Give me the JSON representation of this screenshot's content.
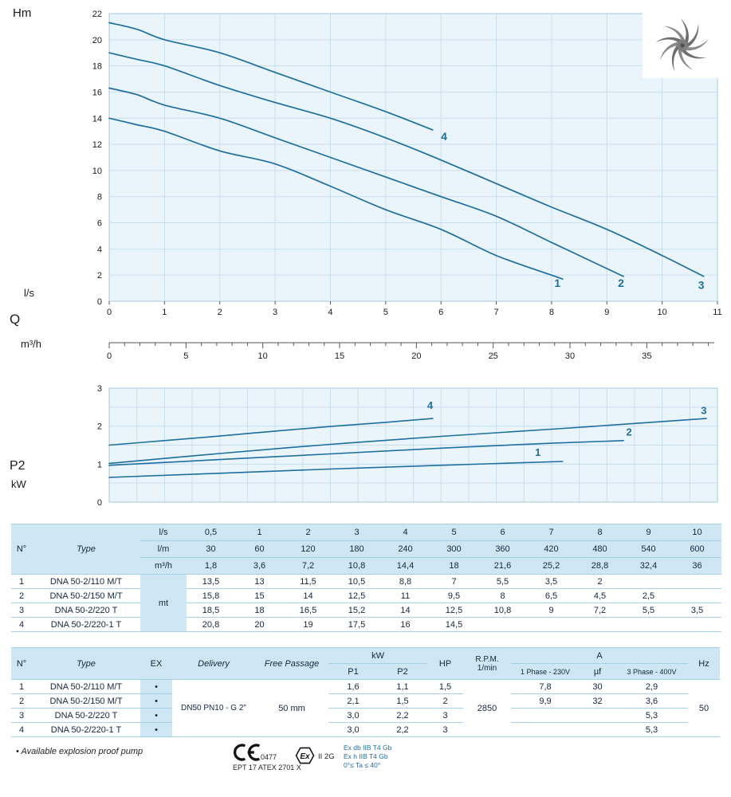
{
  "page": {
    "accent": "#1e6f9f",
    "chart_bg": "#eaf4fb",
    "grid_color": "#c9dfee",
    "axis_color": "#a5c9de",
    "table_header_bg": "#cfe7f5"
  },
  "axis_labels": {
    "hm": "Hm",
    "ls": "l/s",
    "q": "Q",
    "m3h": "m³/h",
    "p2": "P2",
    "kw": "kW"
  },
  "chart_data": [
    {
      "type": "line",
      "title": "",
      "ylabel": "Hm",
      "xlabel": "Q (l/s)",
      "x2label": "Q (m³/h)",
      "xlim": [
        0,
        11
      ],
      "ylim": [
        0,
        22
      ],
      "grid": true,
      "legend_position": "none",
      "y_ticks": [
        0,
        2,
        4,
        6,
        8,
        10,
        12,
        14,
        16,
        18,
        20,
        22
      ],
      "x_ticks": [
        0,
        1,
        2,
        3,
        4,
        5,
        6,
        7,
        8,
        9,
        10,
        11
      ],
      "x2_ticks": [
        0,
        5,
        10,
        15,
        20,
        25,
        30,
        35
      ],
      "series": [
        {
          "name": "1",
          "points": [
            [
              0,
              14
            ],
            [
              0.5,
              13.5
            ],
            [
              1,
              13
            ],
            [
              2,
              11.5
            ],
            [
              3,
              10.5
            ],
            [
              4,
              8.8
            ],
            [
              5,
              7
            ],
            [
              6,
              5.5
            ],
            [
              7,
              3.5
            ],
            [
              8,
              2
            ],
            [
              8.2,
              1.7
            ]
          ],
          "label_pos": [
            8.05,
            1.1
          ]
        },
        {
          "name": "2",
          "points": [
            [
              0,
              16.3
            ],
            [
              0.5,
              15.8
            ],
            [
              1,
              15
            ],
            [
              2,
              14
            ],
            [
              3,
              12.5
            ],
            [
              4,
              11
            ],
            [
              5,
              9.5
            ],
            [
              6,
              8
            ],
            [
              7,
              6.5
            ],
            [
              8,
              4.5
            ],
            [
              9,
              2.5
            ],
            [
              9.3,
              1.9
            ]
          ],
          "label_pos": [
            9.2,
            1.1
          ]
        },
        {
          "name": "3",
          "points": [
            [
              0,
              19
            ],
            [
              0.5,
              18.5
            ],
            [
              1,
              18
            ],
            [
              2,
              16.5
            ],
            [
              3,
              15.2
            ],
            [
              4,
              14
            ],
            [
              5,
              12.5
            ],
            [
              6,
              10.8
            ],
            [
              7,
              9
            ],
            [
              8,
              7.2
            ],
            [
              9,
              5.5
            ],
            [
              10,
              3.5
            ],
            [
              10.75,
              1.9
            ]
          ],
          "label_pos": [
            10.65,
            0.95
          ]
        },
        {
          "name": "4",
          "points": [
            [
              0,
              21.3
            ],
            [
              0.5,
              20.8
            ],
            [
              1,
              20
            ],
            [
              2,
              19
            ],
            [
              3,
              17.5
            ],
            [
              4,
              16
            ],
            [
              5,
              14.5
            ],
            [
              5.85,
              13.1
            ]
          ],
          "label_pos": [
            6.0,
            12.3
          ]
        }
      ]
    },
    {
      "type": "line",
      "title": "",
      "ylabel": "P2 (kW)",
      "xlabel": "Q (l/s)",
      "xlim": [
        0,
        11
      ],
      "ylim": [
        0,
        3
      ],
      "grid": true,
      "legend_position": "none",
      "y_ticks": [
        0,
        1,
        2,
        3
      ],
      "x_ticks": [],
      "series": [
        {
          "name": "1",
          "points": [
            [
              0,
              0.65
            ],
            [
              2,
              0.76
            ],
            [
              4,
              0.87
            ],
            [
              6,
              0.97
            ],
            [
              8.2,
              1.07
            ]
          ],
          "label_pos": [
            7.7,
            1.22
          ]
        },
        {
          "name": "2",
          "points": [
            [
              0,
              0.97
            ],
            [
              2,
              1.12
            ],
            [
              4,
              1.27
            ],
            [
              6,
              1.42
            ],
            [
              8,
              1.55
            ],
            [
              9.3,
              1.62
            ]
          ],
          "label_pos": [
            9.35,
            1.75
          ]
        },
        {
          "name": "3",
          "points": [
            [
              0,
              1.02
            ],
            [
              2,
              1.28
            ],
            [
              4,
              1.52
            ],
            [
              6,
              1.73
            ],
            [
              8,
              1.92
            ],
            [
              10,
              2.12
            ],
            [
              10.8,
              2.2
            ]
          ],
          "label_pos": [
            10.7,
            2.32
          ]
        },
        {
          "name": "4",
          "points": [
            [
              0,
              1.5
            ],
            [
              1,
              1.62
            ],
            [
              2,
              1.74
            ],
            [
              3,
              1.87
            ],
            [
              4,
              1.99
            ],
            [
              5,
              2.1
            ],
            [
              5.85,
              2.2
            ]
          ],
          "label_pos": [
            5.75,
            2.45
          ]
        }
      ]
    }
  ],
  "performance_table": {
    "col_n": "N°",
    "col_type": "Type",
    "body_unit": "mt",
    "unit_rows": [
      {
        "unit": "l/s",
        "values": [
          "0,5",
          "1",
          "2",
          "3",
          "4",
          "5",
          "6",
          "7",
          "8",
          "9",
          "10"
        ]
      },
      {
        "unit": "l/m",
        "values": [
          "30",
          "60",
          "120",
          "180",
          "240",
          "300",
          "360",
          "420",
          "480",
          "540",
          "600"
        ]
      },
      {
        "unit": "m³/h",
        "values": [
          "1,8",
          "3,6",
          "7,2",
          "10,8",
          "14,4",
          "18",
          "21,6",
          "25,2",
          "28,8",
          "32,4",
          "36"
        ]
      }
    ],
    "rows": [
      {
        "n": "1",
        "type": "DNA 50-2/110 M/T",
        "values": [
          "13,5",
          "13",
          "11,5",
          "10,5",
          "8,8",
          "7",
          "5,5",
          "3,5",
          "2",
          "",
          ""
        ]
      },
      {
        "n": "2",
        "type": "DNA 50-2/150 M/T",
        "values": [
          "15,8",
          "15",
          "14",
          "12,5",
          "11",
          "9,5",
          "8",
          "6,5",
          "4,5",
          "2,5",
          ""
        ]
      },
      {
        "n": "3",
        "type": "DNA 50-2/220 T",
        "values": [
          "18,5",
          "18",
          "16,5",
          "15,2",
          "14",
          "12,5",
          "10,8",
          "9",
          "7,2",
          "5,5",
          "3,5"
        ]
      },
      {
        "n": "4",
        "type": "DNA 50-2/220-1 T",
        "values": [
          "20,8",
          "20",
          "19",
          "17,5",
          "16",
          "14,5",
          "",
          "",
          "",
          "",
          ""
        ]
      }
    ]
  },
  "tech_table": {
    "headers": {
      "n": "N°",
      "type": "Type",
      "ex": "EX",
      "delivery": "Delivery",
      "free_passage": "Free Passage",
      "kw": "kW",
      "p1": "P1",
      "p2": "P2",
      "hp": "HP",
      "rpm": "R.P.M.",
      "rpm2": "1/min",
      "a": "A",
      "phase1": "1 Phase - 230V",
      "uf": "µf",
      "phase3": "3 Phase - 400V",
      "hz": "Hz"
    },
    "delivery_value": "DN50 PN10 - G 2\"",
    "free_passage_value": "50 mm",
    "rpm_value": "2850",
    "hz_value": "50",
    "rows": [
      {
        "n": "1",
        "type": "DNA 50-2/110 M/T",
        "ex": "•",
        "p1": "1,6",
        "p2": "1,1",
        "hp": "1,5",
        "phase1": "7,8",
        "uf": "30",
        "phase3": "2,9"
      },
      {
        "n": "2",
        "type": "DNA 50-2/150 M/T",
        "ex": "•",
        "p1": "2,1",
        "p2": "1,5",
        "hp": "2",
        "phase1": "9,9",
        "uf": "32",
        "phase3": "3,6"
      },
      {
        "n": "3",
        "type": "DNA 50-2/220 T",
        "ex": "•",
        "p1": "3,0",
        "p2": "2,2",
        "hp": "3",
        "phase1": "",
        "uf": "",
        "phase3": "5,3"
      },
      {
        "n": "4",
        "type": "DNA 50-2/220-1 T",
        "ex": "•",
        "p1": "3,0",
        "p2": "2,2",
        "hp": "3",
        "phase1": "",
        "uf": "",
        "phase3": "5,3"
      }
    ]
  },
  "footer": {
    "note": "• Available explosion proof pump",
    "ce_number": "0477",
    "atex": "EPT 17 ATEX 2701 X",
    "ex_class": "II 2G",
    "ex_lines": [
      "Ex db IIB T4 Gb",
      "Ex h IIB T4 Gb",
      "0°≤ Ta ≤ 40°"
    ]
  }
}
